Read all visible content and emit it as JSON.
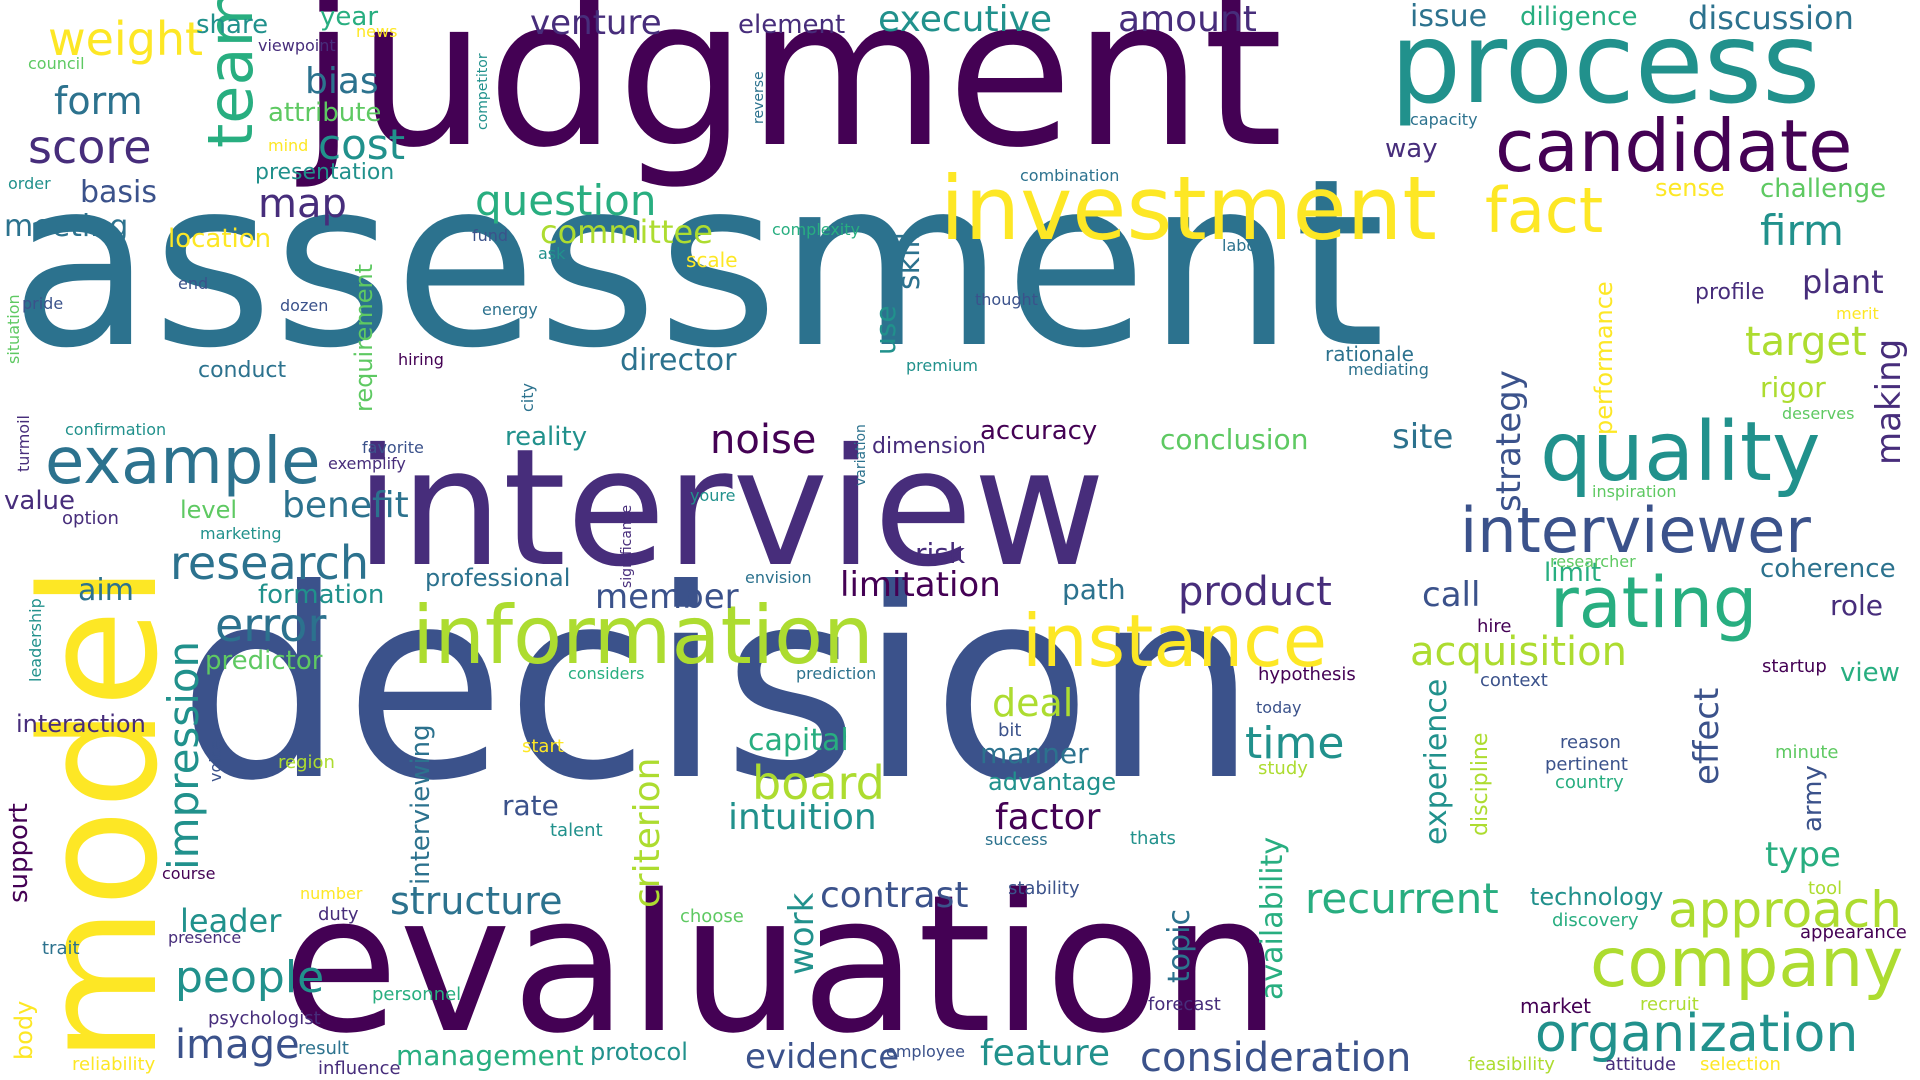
{
  "palette": {
    "purple_dark": "#440154",
    "indigo": "#472d7b",
    "blue_indigo": "#3b528b",
    "steel_blue": "#2c728e",
    "teal": "#21918c",
    "green_teal": "#28ae80",
    "green": "#5ec962",
    "lime": "#addc30",
    "yellow": "#fde725"
  },
  "words": [
    "judgment",
    "assessment",
    "decision",
    "evaluation",
    "interview",
    "process",
    "model",
    "investment",
    "information",
    "candidate",
    "quality",
    "instance",
    "rating",
    "interviewer",
    "company",
    "example",
    "team",
    "fact",
    "approach",
    "organization",
    "weight",
    "score",
    "form",
    "research",
    "noise",
    "error",
    "people",
    "impression",
    "question",
    "committee",
    "executive",
    "amount",
    "venture",
    "discussion",
    "diligence",
    "issue",
    "firm",
    "plant",
    "target",
    "director",
    "strategy",
    "benefit",
    "acquisition",
    "product",
    "member",
    "limitation",
    "structure",
    "recurrent",
    "contrast",
    "board",
    "intuition",
    "capital",
    "deal",
    "time",
    "factor",
    "criterion",
    "consideration",
    "feature",
    "evidence",
    "management",
    "image",
    "leader",
    "interviewing",
    "work",
    "topic",
    "availability",
    "experience",
    "effect",
    "making",
    "performance",
    "map",
    "cost",
    "bias",
    "attribute",
    "presentation",
    "share",
    "year",
    "meeting",
    "basis",
    "location",
    "reality",
    "accuracy",
    "conclusion",
    "site",
    "coherence",
    "limit",
    "role",
    "view",
    "call",
    "path",
    "formation",
    "predictor",
    "aim",
    "level",
    "value",
    "interaction",
    "support",
    "rate",
    "advantage",
    "manner",
    "type",
    "army",
    "technology",
    "protocol",
    "body",
    "skill",
    "use",
    "requirement",
    "element",
    "sense",
    "challenge",
    "profile",
    "rigor",
    "way",
    "risk",
    "dimension",
    "professional",
    "hire",
    "context",
    "hypothesis",
    "startup",
    "reason",
    "pertinent",
    "country",
    "minute",
    "discipline",
    "study",
    "success",
    "thats",
    "talent",
    "region",
    "start",
    "bit",
    "stability",
    "tool",
    "discovery",
    "appearance",
    "market",
    "recruit",
    "attitude",
    "selection",
    "feasibility",
    "employee",
    "forecast",
    "personnel",
    "result",
    "influence",
    "psychologist",
    "reliability",
    "duty",
    "number",
    "presence",
    "course",
    "trait",
    "choose",
    "voice",
    "leadership",
    "marketing",
    "option",
    "exemplify",
    "favorite",
    "confirmation",
    "turmoil",
    "situation",
    "pride",
    "end",
    "dozen",
    "energy",
    "conduct",
    "hiring",
    "city",
    "rationale",
    "mediating",
    "premium",
    "thought",
    "labor",
    "complexity",
    "combination",
    "capacity",
    "ask",
    "fund",
    "scale",
    "mind",
    "council",
    "viewpoint",
    "news",
    "competitor",
    "reverse",
    "order",
    "variation",
    "significance",
    "youre",
    "envision",
    "prediction",
    "considers",
    "researcher",
    "inspiration",
    "deserves",
    "merit",
    "today"
  ]
}
